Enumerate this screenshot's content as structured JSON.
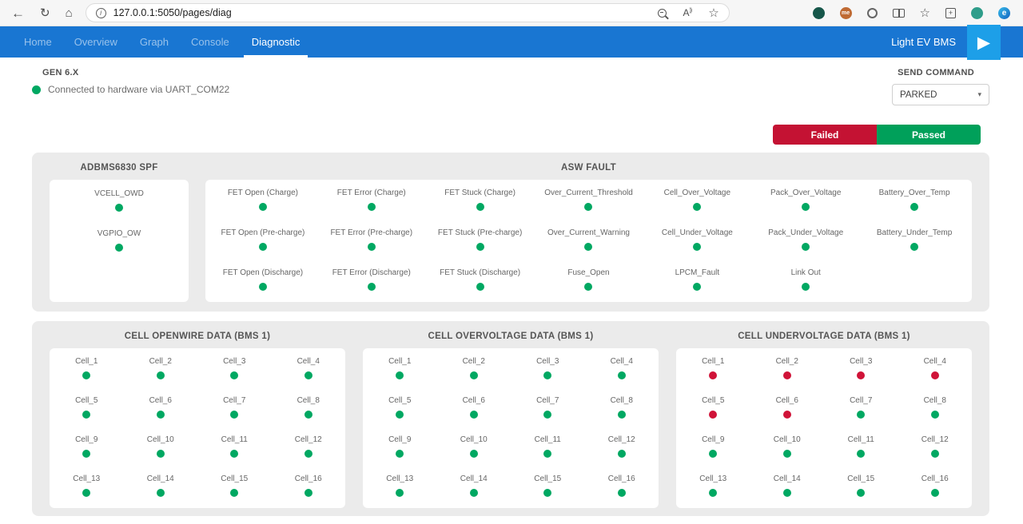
{
  "browser": {
    "url": "127.0.0.1:5050/pages/diag",
    "icons": {
      "back": "←",
      "refresh": "↻",
      "home": "⌂",
      "site_info_letter": "i",
      "read_aloud": "A",
      "favorite": "☆",
      "favorites_bar": "☆",
      "collections_plus": "+",
      "me_extension": "me",
      "edge_logo": "e"
    }
  },
  "navbar": {
    "tabs": [
      {
        "label": "Home"
      },
      {
        "label": "Overview"
      },
      {
        "label": "Graph"
      },
      {
        "label": "Console"
      },
      {
        "label": "Diagnostic"
      }
    ],
    "active_tab": "Diagnostic",
    "brand": "Light EV BMS",
    "logo_glyph": "▶"
  },
  "header": {
    "generation": "GEN 6.X",
    "connection_status": "Connected to hardware via UART_COM22",
    "send_command_label": "SEND COMMAND",
    "command_value": "PARKED",
    "caret": "▾"
  },
  "legend": {
    "failed_label": "Failed",
    "passed_label": "Passed"
  },
  "spf_panel": {
    "title": "ADBMS6830 SPF",
    "items": [
      {
        "label": "VCELL_OWD",
        "status": "pass"
      },
      {
        "label": "VGPIO_OW",
        "status": "pass"
      }
    ]
  },
  "asw_panel": {
    "title": "ASW FAULT",
    "columns": 7,
    "items": [
      {
        "label": "FET Open (Charge)",
        "status": "pass"
      },
      {
        "label": "FET Error (Charge)",
        "status": "pass"
      },
      {
        "label": "FET Stuck (Charge)",
        "status": "pass"
      },
      {
        "label": "Over_Current_Threshold",
        "status": "pass"
      },
      {
        "label": "Cell_Over_Voltage",
        "status": "pass"
      },
      {
        "label": "Pack_Over_Voltage",
        "status": "pass"
      },
      {
        "label": "Battery_Over_Temp",
        "status": "pass"
      },
      {
        "label": "FET Open (Pre-charge)",
        "status": "pass"
      },
      {
        "label": "FET Error (Pre-charge)",
        "status": "pass"
      },
      {
        "label": "FET Stuck (Pre-charge)",
        "status": "pass"
      },
      {
        "label": "Over_Current_Warning",
        "status": "pass"
      },
      {
        "label": "Cell_Under_Voltage",
        "status": "pass"
      },
      {
        "label": "Pack_Under_Voltage",
        "status": "pass"
      },
      {
        "label": "Battery_Under_Temp",
        "status": "pass"
      },
      {
        "label": "FET Open (Discharge)",
        "status": "pass"
      },
      {
        "label": "FET Error (Discharge)",
        "status": "pass"
      },
      {
        "label": "FET Stuck (Discharge)",
        "status": "pass"
      },
      {
        "label": "Fuse_Open",
        "status": "pass"
      },
      {
        "label": "LPCM_Fault",
        "status": "pass"
      },
      {
        "label": "Link Out",
        "status": "pass"
      }
    ]
  },
  "cell_panels": [
    {
      "title": "CELL OPENWIRE DATA (BMS 1)",
      "cells": [
        {
          "label": "Cell_1",
          "status": "pass"
        },
        {
          "label": "Cell_2",
          "status": "pass"
        },
        {
          "label": "Cell_3",
          "status": "pass"
        },
        {
          "label": "Cell_4",
          "status": "pass"
        },
        {
          "label": "Cell_5",
          "status": "pass"
        },
        {
          "label": "Cell_6",
          "status": "pass"
        },
        {
          "label": "Cell_7",
          "status": "pass"
        },
        {
          "label": "Cell_8",
          "status": "pass"
        },
        {
          "label": "Cell_9",
          "status": "pass"
        },
        {
          "label": "Cell_10",
          "status": "pass"
        },
        {
          "label": "Cell_11",
          "status": "pass"
        },
        {
          "label": "Cell_12",
          "status": "pass"
        },
        {
          "label": "Cell_13",
          "status": "pass"
        },
        {
          "label": "Cell_14",
          "status": "pass"
        },
        {
          "label": "Cell_15",
          "status": "pass"
        },
        {
          "label": "Cell_16",
          "status": "pass"
        }
      ]
    },
    {
      "title": "CELL OVERVOLTAGE DATA (BMS 1)",
      "cells": [
        {
          "label": "Cell_1",
          "status": "pass"
        },
        {
          "label": "Cell_2",
          "status": "pass"
        },
        {
          "label": "Cell_3",
          "status": "pass"
        },
        {
          "label": "Cell_4",
          "status": "pass"
        },
        {
          "label": "Cell_5",
          "status": "pass"
        },
        {
          "label": "Cell_6",
          "status": "pass"
        },
        {
          "label": "Cell_7",
          "status": "pass"
        },
        {
          "label": "Cell_8",
          "status": "pass"
        },
        {
          "label": "Cell_9",
          "status": "pass"
        },
        {
          "label": "Cell_10",
          "status": "pass"
        },
        {
          "label": "Cell_11",
          "status": "pass"
        },
        {
          "label": "Cell_12",
          "status": "pass"
        },
        {
          "label": "Cell_13",
          "status": "pass"
        },
        {
          "label": "Cell_14",
          "status": "pass"
        },
        {
          "label": "Cell_15",
          "status": "pass"
        },
        {
          "label": "Cell_16",
          "status": "pass"
        }
      ]
    },
    {
      "title": "CELL UNDERVOLTAGE DATA (BMS 1)",
      "cells": [
        {
          "label": "Cell_1",
          "status": "fail"
        },
        {
          "label": "Cell_2",
          "status": "fail"
        },
        {
          "label": "Cell_3",
          "status": "fail"
        },
        {
          "label": "Cell_4",
          "status": "fail"
        },
        {
          "label": "Cell_5",
          "status": "fail"
        },
        {
          "label": "Cell_6",
          "status": "fail"
        },
        {
          "label": "Cell_7",
          "status": "pass"
        },
        {
          "label": "Cell_8",
          "status": "pass"
        },
        {
          "label": "Cell_9",
          "status": "pass"
        },
        {
          "label": "Cell_10",
          "status": "pass"
        },
        {
          "label": "Cell_11",
          "status": "pass"
        },
        {
          "label": "Cell_12",
          "status": "pass"
        },
        {
          "label": "Cell_13",
          "status": "pass"
        },
        {
          "label": "Cell_14",
          "status": "pass"
        },
        {
          "label": "Cell_15",
          "status": "pass"
        },
        {
          "label": "Cell_16",
          "status": "pass"
        }
      ]
    }
  ],
  "colors": {
    "navbar_blue": "#1976d2",
    "logo_blue": "#1d9fe8",
    "pass": "#00a862",
    "fail": "#d01338",
    "failed_button": "#c41233",
    "passed_button": "#00a05a",
    "panel_gray": "#ebebeb"
  }
}
